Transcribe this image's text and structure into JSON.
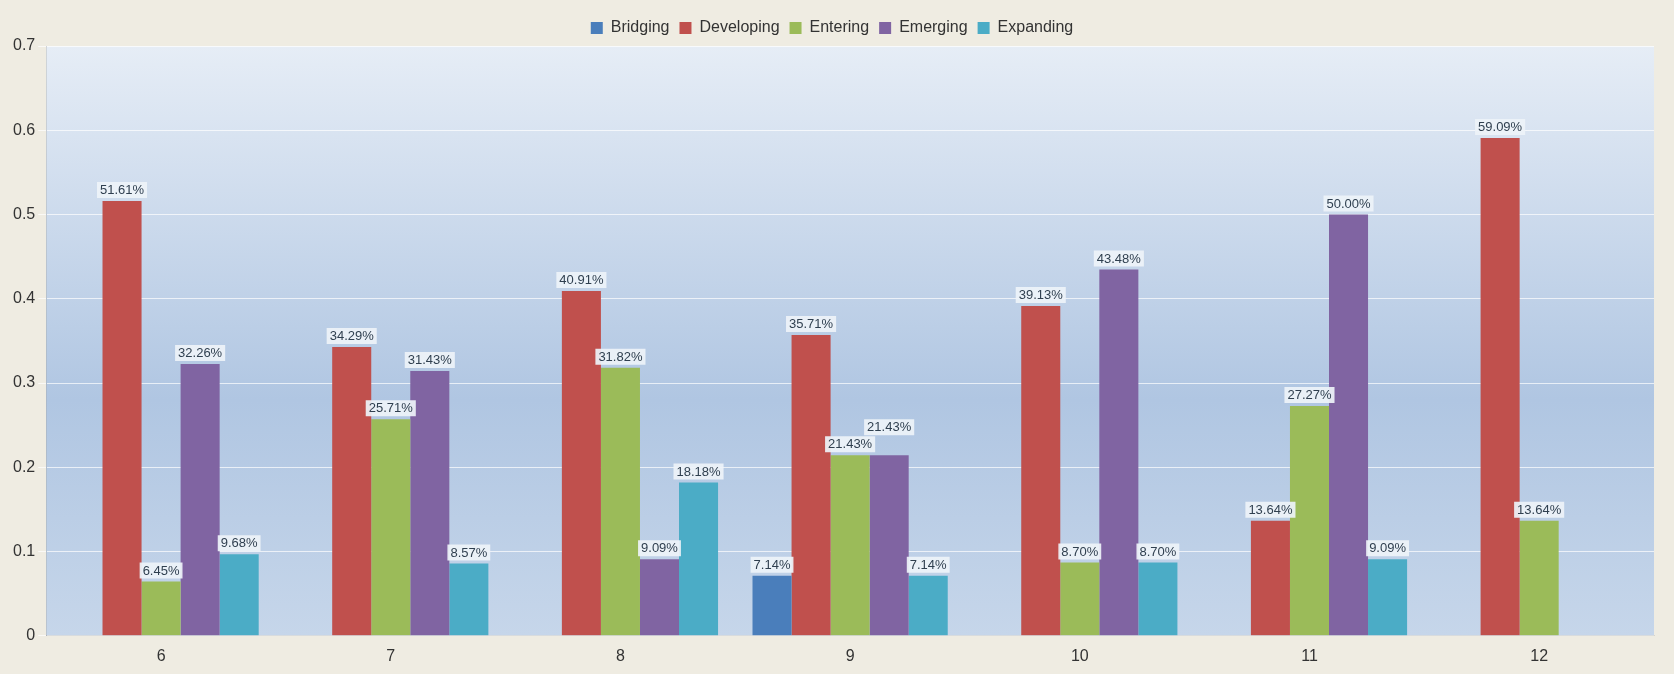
{
  "chart_data": {
    "type": "bar",
    "categories": [
      "6",
      "7",
      "8",
      "9",
      "10",
      "11",
      "12"
    ],
    "series": [
      {
        "name": "Bridging",
        "color": "#4a7ebb",
        "values": [
          null,
          null,
          null,
          0.0714,
          null,
          null,
          null
        ],
        "value_labels": [
          null,
          null,
          null,
          "7.14%",
          null,
          null,
          null
        ]
      },
      {
        "name": "Developing",
        "color": "#c0504d",
        "values": [
          0.5161,
          0.3429,
          0.4091,
          0.3571,
          0.3913,
          0.1364,
          0.5909
        ],
        "value_labels": [
          "51.61%",
          "34.29%",
          "40.91%",
          "35.71%",
          "39.13%",
          "13.64%",
          "59.09%"
        ]
      },
      {
        "name": "Entering",
        "color": "#9bbb59",
        "values": [
          0.0645,
          0.2571,
          0.3182,
          0.2143,
          0.087,
          0.2727,
          0.1364
        ],
        "value_labels": [
          "6.45%",
          "25.71%",
          "31.82%",
          "21.43%",
          "8.70%",
          "27.27%",
          "13.64%"
        ]
      },
      {
        "name": "Emerging",
        "color": "#8064a2",
        "values": [
          0.3226,
          0.3143,
          0.0909,
          0.2143,
          0.4348,
          0.5,
          null
        ],
        "value_labels": [
          "32.26%",
          "31.43%",
          "9.09%",
          "21.43%",
          "43.48%",
          "50.00%",
          null
        ]
      },
      {
        "name": "Expanding",
        "color": "#4bacc6",
        "values": [
          0.0968,
          0.0857,
          0.1818,
          0.0714,
          0.087,
          0.0909,
          null
        ],
        "value_labels": [
          "9.68%",
          "8.57%",
          "18.18%",
          "7.14%",
          "8.70%",
          "9.09%",
          null
        ]
      }
    ],
    "ylim": [
      0,
      0.7
    ],
    "yticks": [
      0,
      0.1,
      0.2,
      0.3,
      0.4,
      0.5,
      0.6,
      0.7
    ],
    "grid": "y",
    "legend": "top"
  }
}
